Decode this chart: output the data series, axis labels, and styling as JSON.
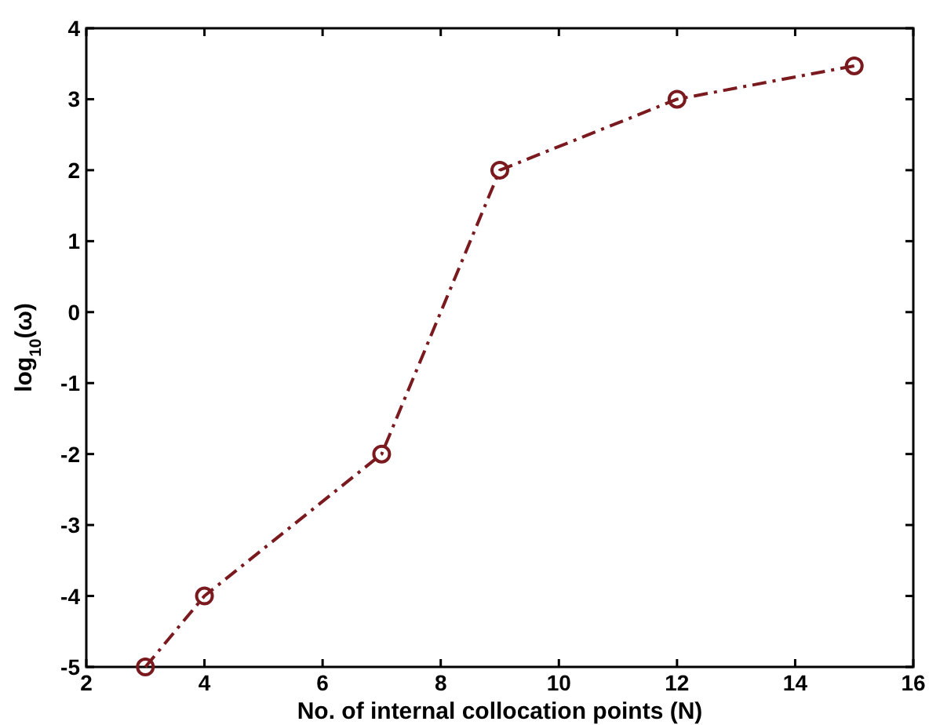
{
  "chart_data": {
    "type": "line",
    "xlabel": "No. of internal collocation points (N)",
    "ylabel": "log$_{10}$(ω)",
    "x": [
      3,
      4,
      7,
      9,
      12,
      15
    ],
    "series": [
      {
        "color": "#7a1a1f",
        "values": [
          -5,
          -4,
          -2,
          2,
          3,
          3.47
        ]
      }
    ],
    "xlim": [
      2,
      16
    ],
    "xticks": [
      2,
      4,
      6,
      8,
      10,
      12,
      14,
      16
    ],
    "ylim": [
      -5,
      4
    ],
    "yticks": [
      -5,
      -4,
      -3,
      -2,
      -1,
      0,
      1,
      2,
      3,
      4
    ],
    "marker": "circle",
    "line_style": "dashed",
    "grid": false
  }
}
